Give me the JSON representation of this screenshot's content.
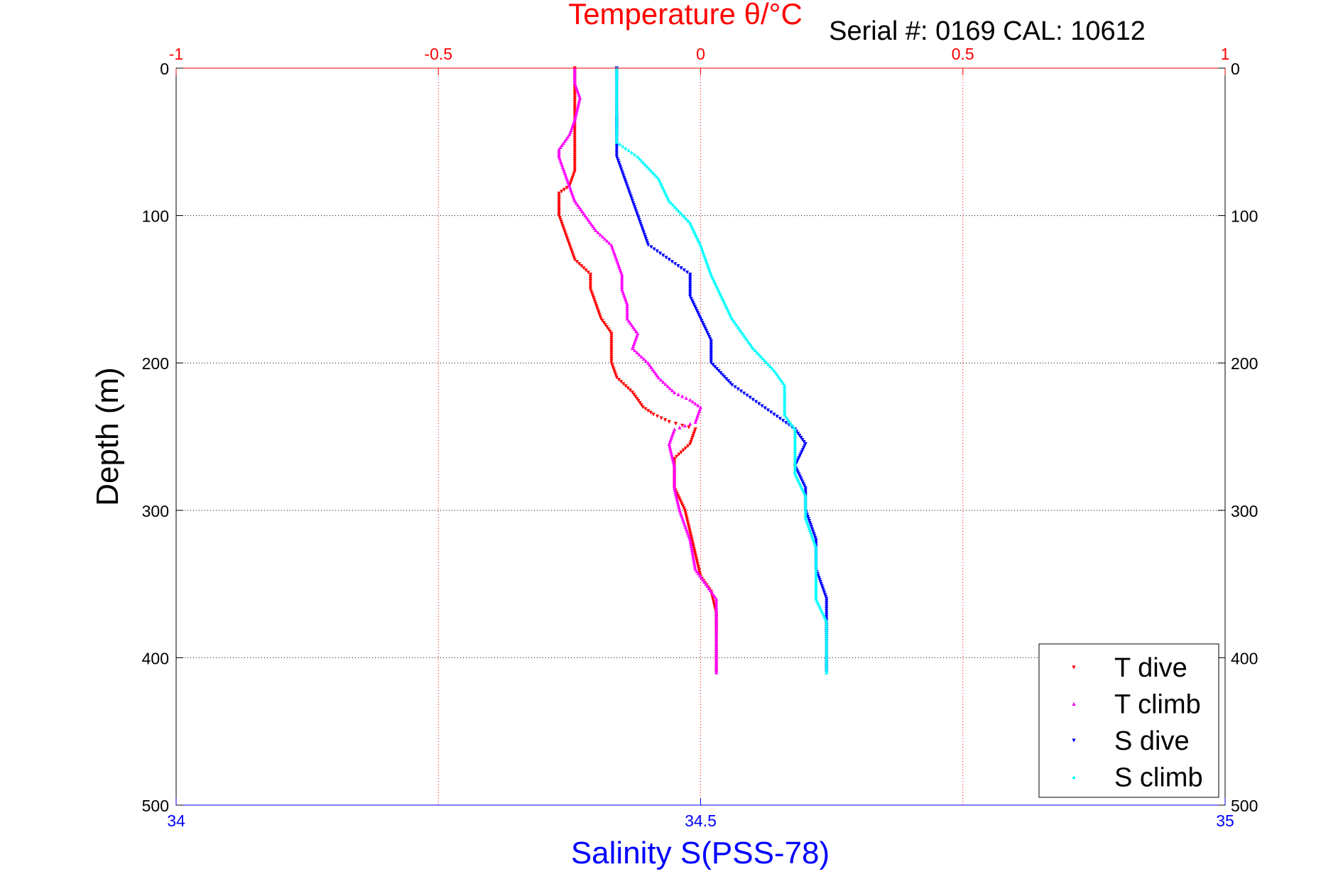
{
  "chart_data": {
    "type": "scatter",
    "title": "Temperature θ/°C",
    "annotation": "Serial #: 0169 CAL: 10612",
    "ylabel": "Depth (m)",
    "xlabel_bottom": "Salinity S(PSS-78)",
    "xlim_top": [
      -1,
      1
    ],
    "xlim_bottom": [
      34,
      35
    ],
    "ylim": [
      0,
      500
    ],
    "y_reversed": true,
    "xticks_top": [
      "-1",
      "-0.5",
      "0",
      "0.5",
      "1"
    ],
    "xticks_bottom": [
      "34",
      "34.5",
      "35"
    ],
    "yticks": [
      "0",
      "100",
      "200",
      "300",
      "400",
      "500"
    ],
    "grid": true,
    "legend_position": "bottom-right",
    "colors": {
      "top_axis": "#ff0000",
      "bottom_axis": "#0000ff",
      "frame": "#000000"
    },
    "series": [
      {
        "name": "T dive",
        "axis": "top",
        "marker": "triangle-down",
        "color": "#ff0000",
        "points": [
          [
            -0.24,
            0
          ],
          [
            -0.24,
            20
          ],
          [
            -0.24,
            40
          ],
          [
            -0.24,
            60
          ],
          [
            -0.24,
            70
          ],
          [
            -0.25,
            80
          ],
          [
            -0.27,
            85
          ],
          [
            -0.27,
            95
          ],
          [
            -0.27,
            100
          ],
          [
            -0.26,
            110
          ],
          [
            -0.25,
            120
          ],
          [
            -0.24,
            130
          ],
          [
            -0.21,
            140
          ],
          [
            -0.21,
            150
          ],
          [
            -0.2,
            160
          ],
          [
            -0.19,
            170
          ],
          [
            -0.17,
            180
          ],
          [
            -0.17,
            190
          ],
          [
            -0.17,
            200
          ],
          [
            -0.16,
            210
          ],
          [
            -0.13,
            220
          ],
          [
            -0.11,
            230
          ],
          [
            -0.09,
            235
          ],
          [
            -0.06,
            240
          ],
          [
            -0.01,
            245
          ],
          [
            -0.02,
            255
          ],
          [
            -0.05,
            265
          ],
          [
            -0.05,
            275
          ],
          [
            -0.05,
            285
          ],
          [
            -0.03,
            300
          ],
          [
            -0.02,
            315
          ],
          [
            -0.01,
            330
          ],
          [
            0,
            345
          ],
          [
            0.02,
            355
          ],
          [
            0.03,
            370
          ],
          [
            0.03,
            385
          ],
          [
            0.03,
            400
          ],
          [
            0.03,
            410
          ]
        ]
      },
      {
        "name": "T climb",
        "axis": "top",
        "marker": "triangle-up",
        "color": "#ff00ff",
        "points": [
          [
            -0.24,
            0
          ],
          [
            -0.24,
            10
          ],
          [
            -0.23,
            20
          ],
          [
            -0.24,
            35
          ],
          [
            -0.25,
            45
          ],
          [
            -0.27,
            55
          ],
          [
            -0.27,
            60
          ],
          [
            -0.26,
            70
          ],
          [
            -0.25,
            80
          ],
          [
            -0.24,
            90
          ],
          [
            -0.22,
            100
          ],
          [
            -0.2,
            110
          ],
          [
            -0.17,
            120
          ],
          [
            -0.16,
            130
          ],
          [
            -0.15,
            140
          ],
          [
            -0.15,
            150
          ],
          [
            -0.14,
            160
          ],
          [
            -0.14,
            170
          ],
          [
            -0.12,
            180
          ],
          [
            -0.13,
            190
          ],
          [
            -0.1,
            200
          ],
          [
            -0.08,
            210
          ],
          [
            -0.05,
            220
          ],
          [
            -0.02,
            225
          ],
          [
            0,
            230
          ],
          [
            -0.01,
            240
          ],
          [
            -0.05,
            245
          ],
          [
            -0.06,
            255
          ],
          [
            -0.05,
            270
          ],
          [
            -0.05,
            285
          ],
          [
            -0.04,
            300
          ],
          [
            -0.02,
            320
          ],
          [
            -0.01,
            340
          ],
          [
            0.01,
            350
          ],
          [
            0.03,
            360
          ],
          [
            0.03,
            380
          ],
          [
            0.03,
            400
          ],
          [
            0.03,
            410
          ]
        ]
      },
      {
        "name": "S dive",
        "axis": "bottom",
        "marker": "triangle-down",
        "color": "#0000ff",
        "points": [
          [
            34.42,
            0
          ],
          [
            34.42,
            20
          ],
          [
            34.42,
            40
          ],
          [
            34.42,
            60
          ],
          [
            34.43,
            80
          ],
          [
            34.44,
            100
          ],
          [
            34.45,
            120
          ],
          [
            34.47,
            130
          ],
          [
            34.49,
            140
          ],
          [
            34.49,
            155
          ],
          [
            34.5,
            170
          ],
          [
            34.51,
            185
          ],
          [
            34.51,
            200
          ],
          [
            34.53,
            215
          ],
          [
            34.55,
            225
          ],
          [
            34.57,
            235
          ],
          [
            34.59,
            245
          ],
          [
            34.6,
            255
          ],
          [
            34.59,
            270
          ],
          [
            34.6,
            285
          ],
          [
            34.6,
            300
          ],
          [
            34.61,
            320
          ],
          [
            34.61,
            340
          ],
          [
            34.62,
            360
          ],
          [
            34.62,
            375
          ],
          [
            34.62,
            390
          ],
          [
            34.62,
            410
          ]
        ]
      },
      {
        "name": "S climb",
        "axis": "bottom",
        "marker": "triangle-up",
        "color": "#00ffff",
        "points": [
          [
            34.42,
            0
          ],
          [
            34.42,
            25
          ],
          [
            34.42,
            50
          ],
          [
            34.44,
            60
          ],
          [
            34.46,
            75
          ],
          [
            34.47,
            90
          ],
          [
            34.49,
            105
          ],
          [
            34.5,
            120
          ],
          [
            34.51,
            140
          ],
          [
            34.52,
            155
          ],
          [
            34.53,
            170
          ],
          [
            34.55,
            190
          ],
          [
            34.57,
            205
          ],
          [
            34.58,
            215
          ],
          [
            34.58,
            225
          ],
          [
            34.58,
            235
          ],
          [
            34.59,
            245
          ],
          [
            34.59,
            260
          ],
          [
            34.59,
            275
          ],
          [
            34.6,
            290
          ],
          [
            34.6,
            305
          ],
          [
            34.61,
            325
          ],
          [
            34.61,
            345
          ],
          [
            34.61,
            360
          ],
          [
            34.62,
            375
          ],
          [
            34.62,
            395
          ],
          [
            34.62,
            410
          ]
        ]
      }
    ]
  }
}
